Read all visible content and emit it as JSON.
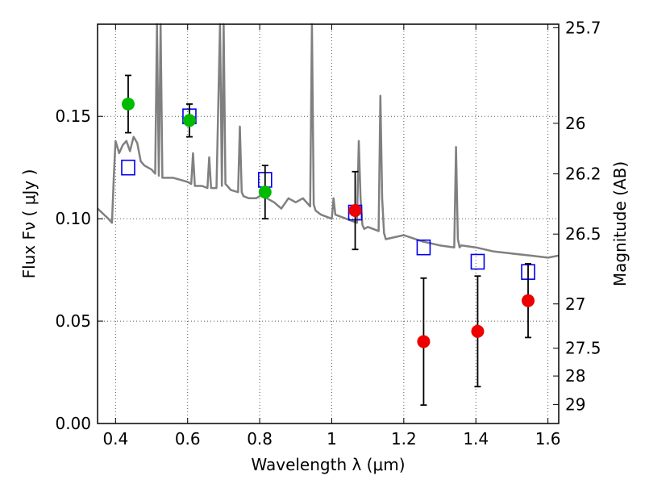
{
  "chart_data": {
    "type": "scatter",
    "xlabel": "Wavelength  λ (μm)",
    "ylabel": "Flux  Fν  ( μJy )",
    "ylabel_right": "Magnitude (AB)",
    "xlim": [
      0.35,
      1.63
    ],
    "ylim": [
      0.0,
      0.195
    ],
    "x_ticks": [
      0.4,
      0.6,
      0.8,
      1.0,
      1.2,
      1.4,
      1.6
    ],
    "x_tick_labels": [
      "0.4",
      "0.6",
      "0.8",
      "1",
      "1.2",
      "1.4",
      "1.6"
    ],
    "y_ticks": [
      0.0,
      0.05,
      0.1,
      0.15
    ],
    "y_tick_labels": [
      "0.00",
      "0.05",
      "0.10",
      "0.15"
    ],
    "right_ticks": [
      {
        "label": "25.7",
        "flux": 0.1933
      },
      {
        "label": "26",
        "flux": 0.1466
      },
      {
        "label": "26.2",
        "flux": 0.1219
      },
      {
        "label": "26.5",
        "flux": 0.0925
      },
      {
        "label": "27",
        "flux": 0.0584
      },
      {
        "label": "27.5",
        "flux": 0.0368
      },
      {
        "label": "28",
        "flux": 0.0232
      },
      {
        "label": "29",
        "flux": 0.0093
      }
    ],
    "grid": true,
    "series": [
      {
        "kind": "line",
        "color": "#808080",
        "x": [
          0.35,
          0.38,
          0.39,
          0.395,
          0.4,
          0.41,
          0.42,
          0.43,
          0.44,
          0.45,
          0.46,
          0.47,
          0.48,
          0.49,
          0.5,
          0.51,
          0.515,
          0.52,
          0.525,
          0.53,
          0.54,
          0.56,
          0.58,
          0.6,
          0.61,
          0.615,
          0.62,
          0.64,
          0.655,
          0.66,
          0.665,
          0.68,
          0.69,
          0.695,
          0.7,
          0.705,
          0.71,
          0.72,
          0.74,
          0.745,
          0.75,
          0.755,
          0.77,
          0.79,
          0.8,
          0.81,
          0.82,
          0.84,
          0.86,
          0.88,
          0.9,
          0.92,
          0.94,
          0.945,
          0.95,
          0.955,
          0.97,
          1.0,
          1.005,
          1.01,
          1.04,
          1.07,
          1.075,
          1.08,
          1.085,
          1.09,
          1.1,
          1.13,
          1.135,
          1.14,
          1.145,
          1.15,
          1.2,
          1.25,
          1.3,
          1.34,
          1.345,
          1.35,
          1.355,
          1.36,
          1.4,
          1.45,
          1.5,
          1.55,
          1.6,
          1.63
        ],
        "y": [
          0.105,
          0.1,
          0.098,
          0.12,
          0.138,
          0.132,
          0.136,
          0.138,
          0.133,
          0.14,
          0.137,
          0.128,
          0.126,
          0.125,
          0.124,
          0.122,
          0.195,
          0.121,
          0.195,
          0.12,
          0.12,
          0.12,
          0.119,
          0.118,
          0.117,
          0.132,
          0.116,
          0.116,
          0.115,
          0.13,
          0.115,
          0.115,
          0.195,
          0.116,
          0.195,
          0.117,
          0.116,
          0.114,
          0.113,
          0.145,
          0.113,
          0.111,
          0.11,
          0.11,
          0.111,
          0.113,
          0.11,
          0.108,
          0.105,
          0.11,
          0.108,
          0.11,
          0.106,
          0.195,
          0.107,
          0.104,
          0.102,
          0.1,
          0.11,
          0.102,
          0.1,
          0.098,
          0.138,
          0.11,
          0.097,
          0.095,
          0.096,
          0.094,
          0.16,
          0.11,
          0.093,
          0.09,
          0.092,
          0.089,
          0.087,
          0.086,
          0.135,
          0.09,
          0.086,
          0.087,
          0.086,
          0.084,
          0.083,
          0.082,
          0.081,
          0.082
        ]
      },
      {
        "kind": "squares",
        "color": "#0000ee",
        "x": [
          0.435,
          0.605,
          0.815,
          1.065,
          1.255,
          1.405,
          1.545
        ],
        "y": [
          0.125,
          0.15,
          0.119,
          0.103,
          0.086,
          0.079,
          0.074
        ]
      },
      {
        "kind": "points",
        "color": "#00bb00",
        "x": [
          0.435,
          0.605,
          0.815
        ],
        "y": [
          0.156,
          0.148,
          0.113
        ],
        "err": [
          0.014,
          0.008,
          0.013
        ]
      },
      {
        "kind": "points",
        "color": "#ee0000",
        "x": [
          1.065,
          1.255,
          1.405,
          1.545
        ],
        "y": [
          0.104,
          0.04,
          0.045,
          0.06
        ],
        "err": [
          0.019,
          0.031,
          0.027,
          0.018
        ]
      }
    ]
  }
}
